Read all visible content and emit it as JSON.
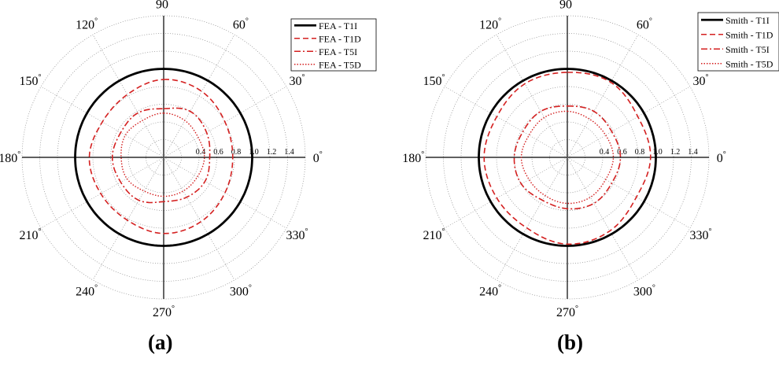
{
  "chart_data": [
    {
      "type": "polar-line",
      "panel_label": "(a)",
      "angle_labels": [
        "90",
        "60",
        "30",
        "0",
        "330",
        "300",
        "270",
        "240",
        "210",
        "180",
        "150",
        "120"
      ],
      "radial_ticks": [
        "0.4",
        "0.6",
        "0.8",
        "1.0",
        "1.2",
        "1.4"
      ],
      "rlim": [
        0,
        1.6
      ],
      "grid": true,
      "legend_position": "top-right",
      "series": [
        {
          "name": "FEA - T1I",
          "color": "#000000",
          "style": "solid",
          "r": [
            1.0,
            1.0,
            1.0,
            1.0,
            1.0,
            1.0,
            1.0,
            1.0,
            1.0,
            1.0,
            1.0,
            1.0
          ]
        },
        {
          "name": "FEA - T1D",
          "color": "#d42020",
          "style": "dashed",
          "r": [
            0.88,
            0.86,
            0.8,
            0.78,
            0.8,
            0.84,
            0.86,
            0.82,
            0.82,
            0.84,
            0.8,
            0.82
          ]
        },
        {
          "name": "FEA - T5I",
          "color": "#d42020",
          "style": "dashdot",
          "r": [
            0.55,
            0.6,
            0.56,
            0.52,
            0.54,
            0.52,
            0.5,
            0.56,
            0.56,
            0.58,
            0.56,
            0.58
          ]
        },
        {
          "name": "FEA - T5D",
          "color": "#d42020",
          "style": "dotted",
          "r": [
            0.5,
            0.48,
            0.45,
            0.46,
            0.44,
            0.44,
            0.44,
            0.44,
            0.48,
            0.48,
            0.5,
            0.48
          ]
        }
      ]
    },
    {
      "type": "polar-line",
      "panel_label": "(b)",
      "angle_labels": [
        "90",
        "60",
        "30",
        "0",
        "330",
        "300",
        "270",
        "240",
        "210",
        "180",
        "150",
        "120"
      ],
      "radial_ticks": [
        "0.4",
        "0.6",
        "0.8",
        "1.0",
        "1.2",
        "1.4"
      ],
      "rlim": [
        0,
        1.6
      ],
      "grid": true,
      "legend_position": "top-right",
      "series": [
        {
          "name": "Smith - T1I",
          "color": "#000000",
          "style": "solid",
          "r": [
            1.0,
            1.0,
            1.0,
            1.0,
            1.0,
            1.0,
            1.0,
            1.0,
            1.0,
            1.0,
            1.0,
            1.0
          ]
        },
        {
          "name": "Smith - T1D",
          "color": "#d42020",
          "style": "dashed",
          "r": [
            0.96,
            0.98,
            0.92,
            0.94,
            0.9,
            0.96,
            0.98,
            0.92,
            0.92,
            0.94,
            0.92,
            0.96
          ]
        },
        {
          "name": "Smith - T5I",
          "color": "#d42020",
          "style": "dashdot",
          "r": [
            0.58,
            0.6,
            0.58,
            0.6,
            0.58,
            0.6,
            0.58,
            0.56,
            0.6,
            0.6,
            0.58,
            0.6
          ]
        },
        {
          "name": "Smith - T5D",
          "color": "#d42020",
          "style": "dotted",
          "r": [
            0.52,
            0.5,
            0.5,
            0.52,
            0.5,
            0.52,
            0.52,
            0.5,
            0.5,
            0.52,
            0.5,
            0.52
          ]
        }
      ]
    }
  ]
}
